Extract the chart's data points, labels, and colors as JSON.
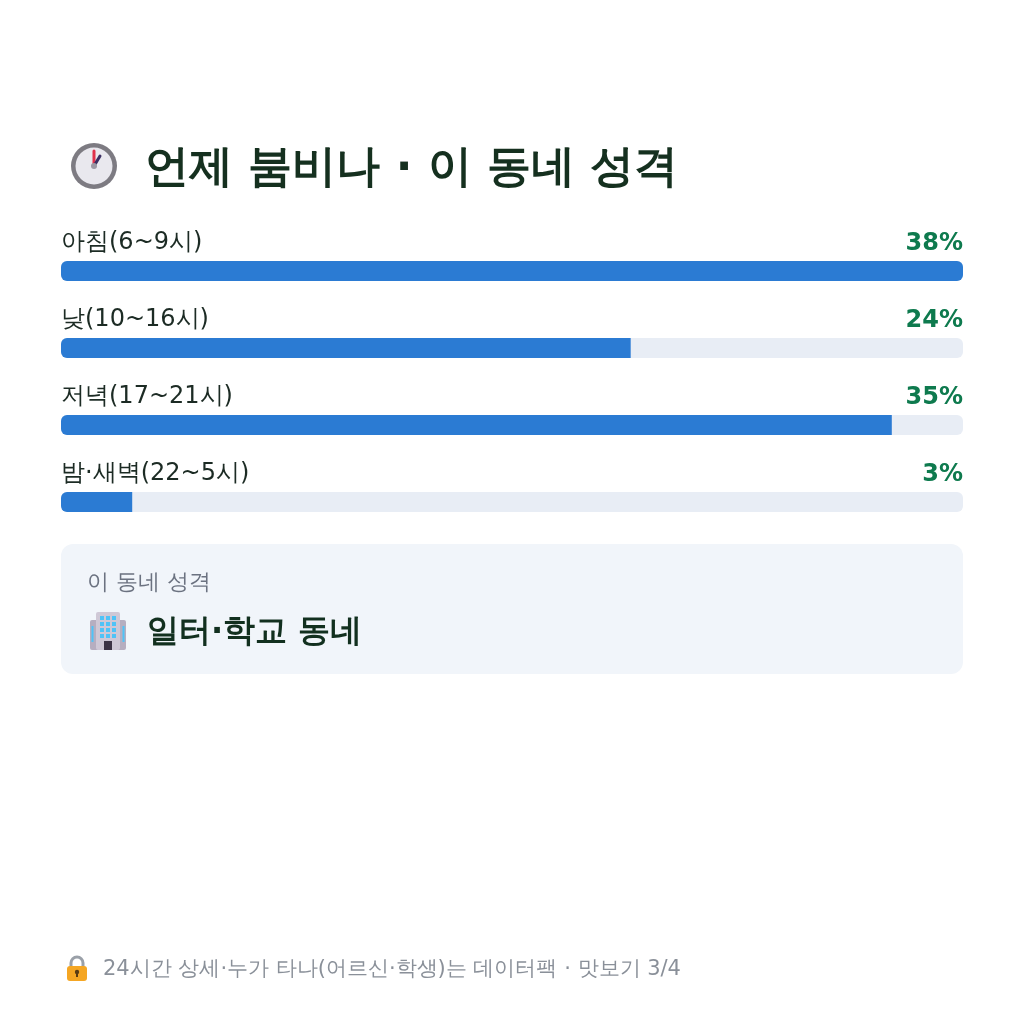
{
  "chart_data": {
    "type": "bar",
    "orientation": "horizontal",
    "title": "언제 붐비나 · 이 동네 성격",
    "categories": [
      "아침(6~9시)",
      "낮(10~16시)",
      "저녁(17~21시)",
      "밤·새벽(22~5시)"
    ],
    "values": [
      38,
      24,
      35,
      3
    ],
    "value_labels": [
      "38%",
      "24%",
      "35%",
      "3%"
    ],
    "color": "#2b7bd3",
    "xlim": [
      0,
      38
    ],
    "tick_labels": "y",
    "annotations": [
      "이 동네 성격",
      "일터·학교 동네",
      "24시간 상세·누가 타나(어르신·학생)는 데이터팩 · 맛보기 3/4"
    ]
  }
}
